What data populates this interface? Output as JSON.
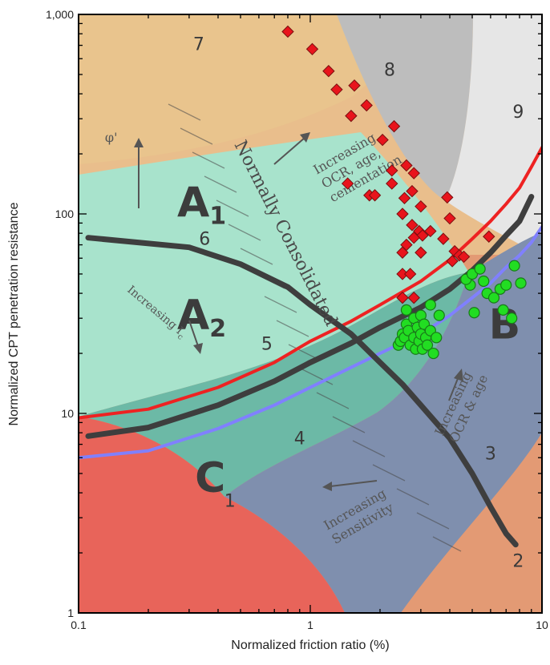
{
  "chart_data": {
    "type": "scatter",
    "title": "",
    "xlabel": "Normalized friction ratio (%)",
    "ylabel": "Normalized CPT penetration resistance",
    "xscale": "log",
    "yscale": "log",
    "xlim": [
      0.1,
      10
    ],
    "ylim": [
      1,
      1000
    ],
    "x_ticks": [
      0.1,
      1,
      10
    ],
    "x_tick_labels": [
      "0.1",
      "1",
      "10"
    ],
    "y_ticks": [
      1,
      10,
      100,
      1000
    ],
    "y_tick_labels": [
      "1",
      "10",
      "100",
      "1,000"
    ],
    "grid": false,
    "zones": [
      {
        "id": "1",
        "color": "#e8645a"
      },
      {
        "id": "2",
        "color": "#e39a74"
      },
      {
        "id": "3",
        "color": "#7f8fae"
      },
      {
        "id": "4",
        "color": "#6cb9a6"
      },
      {
        "id": "5",
        "color": "#a8e3cc"
      },
      {
        "id": "6",
        "color": "#e9c48d"
      },
      {
        "id": "7",
        "color": "#e9be8c"
      },
      {
        "id": "8",
        "color": "#bdbdbd"
      },
      {
        "id": "9",
        "color": "#e6e6e6"
      }
    ],
    "zone_labels": [
      {
        "text": "1",
        "x": 0.45,
        "y": 3.6
      },
      {
        "text": "2",
        "x": 7.9,
        "y": 1.8
      },
      {
        "text": "3",
        "x": 6.0,
        "y": 6.2
      },
      {
        "text": "4",
        "x": 0.9,
        "y": 7.4
      },
      {
        "text": "5",
        "x": 0.65,
        "y": 22
      },
      {
        "text": "6",
        "x": 0.35,
        "y": 74
      },
      {
        "text": "7",
        "x": 0.33,
        "y": 700
      },
      {
        "text": "8",
        "x": 2.2,
        "y": 520
      },
      {
        "text": "9",
        "x": 7.9,
        "y": 320
      }
    ],
    "group_labels": [
      {
        "text": "A",
        "sub": "1",
        "x": 0.34,
        "y": 110
      },
      {
        "text": "A",
        "sub": "2",
        "x": 0.34,
        "y": 30
      },
      {
        "text": "B",
        "sub": "",
        "x": 6.9,
        "y": 27
      },
      {
        "text": "C",
        "sub": "",
        "x": 0.37,
        "y": 4.6
      }
    ],
    "annotations": [
      {
        "text": "φ'",
        "x": 0.13,
        "y": 230
      },
      {
        "lines": [
          "Increasing",
          "OCR, age,",
          "cementation"
        ]
      },
      {
        "text": "Normally Consolidated"
      },
      {
        "lines": [
          "Increasing",
          "OCR & age"
        ]
      },
      {
        "lines": [
          "Increasing",
          "Sensitivity"
        ]
      },
      {
        "text": "Increasing I",
        "sub": "c"
      }
    ],
    "series": [
      {
        "marker": "diamond",
        "color": "#e8141c",
        "points": [
          [
            0.8,
            820
          ],
          [
            1.02,
            670
          ],
          [
            1.2,
            520
          ],
          [
            1.3,
            420
          ],
          [
            1.55,
            440
          ],
          [
            1.5,
            310
          ],
          [
            1.75,
            350
          ],
          [
            2.05,
            235
          ],
          [
            2.3,
            275
          ],
          [
            1.45,
            142
          ],
          [
            1.8,
            124
          ],
          [
            1.9,
            124
          ],
          [
            2.25,
            165
          ],
          [
            2.25,
            142
          ],
          [
            2.6,
            175
          ],
          [
            2.8,
            160
          ],
          [
            2.75,
            130
          ],
          [
            2.55,
            120
          ],
          [
            2.5,
            100
          ],
          [
            3.0,
            109
          ],
          [
            3.9,
            121
          ],
          [
            4.0,
            95
          ],
          [
            2.75,
            88
          ],
          [
            2.95,
            82
          ],
          [
            3.05,
            78
          ],
          [
            3.3,
            82
          ],
          [
            2.8,
            76
          ],
          [
            3.75,
            75
          ],
          [
            2.6,
            70
          ],
          [
            2.5,
            64
          ],
          [
            3.0,
            64
          ],
          [
            4.2,
            65
          ],
          [
            4.4,
            62
          ],
          [
            4.6,
            61
          ],
          [
            5.9,
            77
          ],
          [
            4.1,
            58
          ],
          [
            2.5,
            50
          ],
          [
            2.7,
            50
          ],
          [
            2.5,
            38
          ],
          [
            2.8,
            38
          ]
        ]
      },
      {
        "marker": "circle",
        "color": "#22dd22",
        "points": [
          [
            2.4,
            22
          ],
          [
            2.45,
            23
          ],
          [
            2.5,
            25
          ],
          [
            2.55,
            24
          ],
          [
            2.6,
            28
          ],
          [
            2.65,
            26
          ],
          [
            2.7,
            22
          ],
          [
            2.8,
            30
          ],
          [
            2.8,
            24
          ],
          [
            2.85,
            21
          ],
          [
            2.9,
            27
          ],
          [
            2.95,
            23
          ],
          [
            3.0,
            25
          ],
          [
            3.0,
            31
          ],
          [
            3.05,
            21
          ],
          [
            3.1,
            28
          ],
          [
            3.15,
            24
          ],
          [
            3.2,
            22
          ],
          [
            3.3,
            26
          ],
          [
            3.3,
            35
          ],
          [
            3.4,
            20
          ],
          [
            3.5,
            24
          ],
          [
            3.6,
            31
          ],
          [
            2.6,
            33
          ],
          [
            4.9,
            44
          ],
          [
            4.7,
            47
          ],
          [
            5.0,
            50
          ],
          [
            5.4,
            53
          ],
          [
            5.6,
            46
          ],
          [
            5.8,
            40
          ],
          [
            6.2,
            38
          ],
          [
            6.6,
            42
          ],
          [
            7.0,
            44
          ],
          [
            7.4,
            30
          ],
          [
            6.8,
            33
          ],
          [
            7.6,
            55
          ],
          [
            8.1,
            45
          ],
          [
            5.1,
            32
          ]
        ]
      }
    ],
    "curves": [
      {
        "color": "#ee2222",
        "width": 4,
        "points": [
          [
            0.1,
            9.5
          ],
          [
            0.2,
            10.5
          ],
          [
            0.4,
            13.5
          ],
          [
            0.7,
            18
          ],
          [
            1.0,
            23
          ],
          [
            1.5,
            29
          ],
          [
            2.0,
            35
          ],
          [
            3.0,
            46
          ],
          [
            4.0,
            59
          ],
          [
            5.0,
            75
          ],
          [
            6.0,
            92
          ],
          [
            7.0,
            112
          ],
          [
            8.0,
            135
          ],
          [
            9.0,
            172
          ],
          [
            10.0,
            215
          ]
        ]
      },
      {
        "color": "#8080ff",
        "width": 4,
        "points": [
          [
            0.1,
            6.0
          ],
          [
            0.2,
            6.5
          ],
          [
            0.4,
            8.4
          ],
          [
            0.7,
            11
          ],
          [
            1.0,
            13.5
          ],
          [
            1.5,
            17
          ],
          [
            2.0,
            20
          ],
          [
            3.0,
            25
          ],
          [
            4.0,
            31
          ],
          [
            5.0,
            38
          ],
          [
            6.0,
            45
          ],
          [
            7.0,
            54
          ],
          [
            8.0,
            62
          ],
          [
            9.0,
            72
          ],
          [
            10.0,
            86
          ]
        ]
      },
      {
        "color": "#3e3e3e",
        "width": 7,
        "points": [
          [
            0.11,
            7.7
          ],
          [
            0.2,
            8.5
          ],
          [
            0.4,
            11
          ],
          [
            0.7,
            14.5
          ],
          [
            1.0,
            18
          ],
          [
            1.5,
            22.5
          ],
          [
            2.0,
            27
          ],
          [
            3.0,
            34
          ],
          [
            4.0,
            42
          ],
          [
            5.0,
            52
          ],
          [
            6.0,
            64
          ],
          [
            7.0,
            78
          ],
          [
            8.0,
            92
          ],
          [
            9.0,
            122
          ]
        ]
      },
      {
        "color": "#3e3e3e",
        "width": 7,
        "points": [
          [
            0.11,
            76
          ],
          [
            0.3,
            68
          ],
          [
            0.5,
            56
          ],
          [
            0.8,
            43
          ],
          [
            1.0,
            35
          ],
          [
            1.5,
            25
          ],
          [
            2.0,
            18
          ],
          [
            2.5,
            14
          ],
          [
            3.0,
            11
          ],
          [
            4.0,
            7.5
          ],
          [
            5.0,
            5.0
          ],
          [
            6.0,
            3.4
          ],
          [
            7.0,
            2.5
          ],
          [
            7.7,
            2.2
          ]
        ]
      }
    ]
  }
}
